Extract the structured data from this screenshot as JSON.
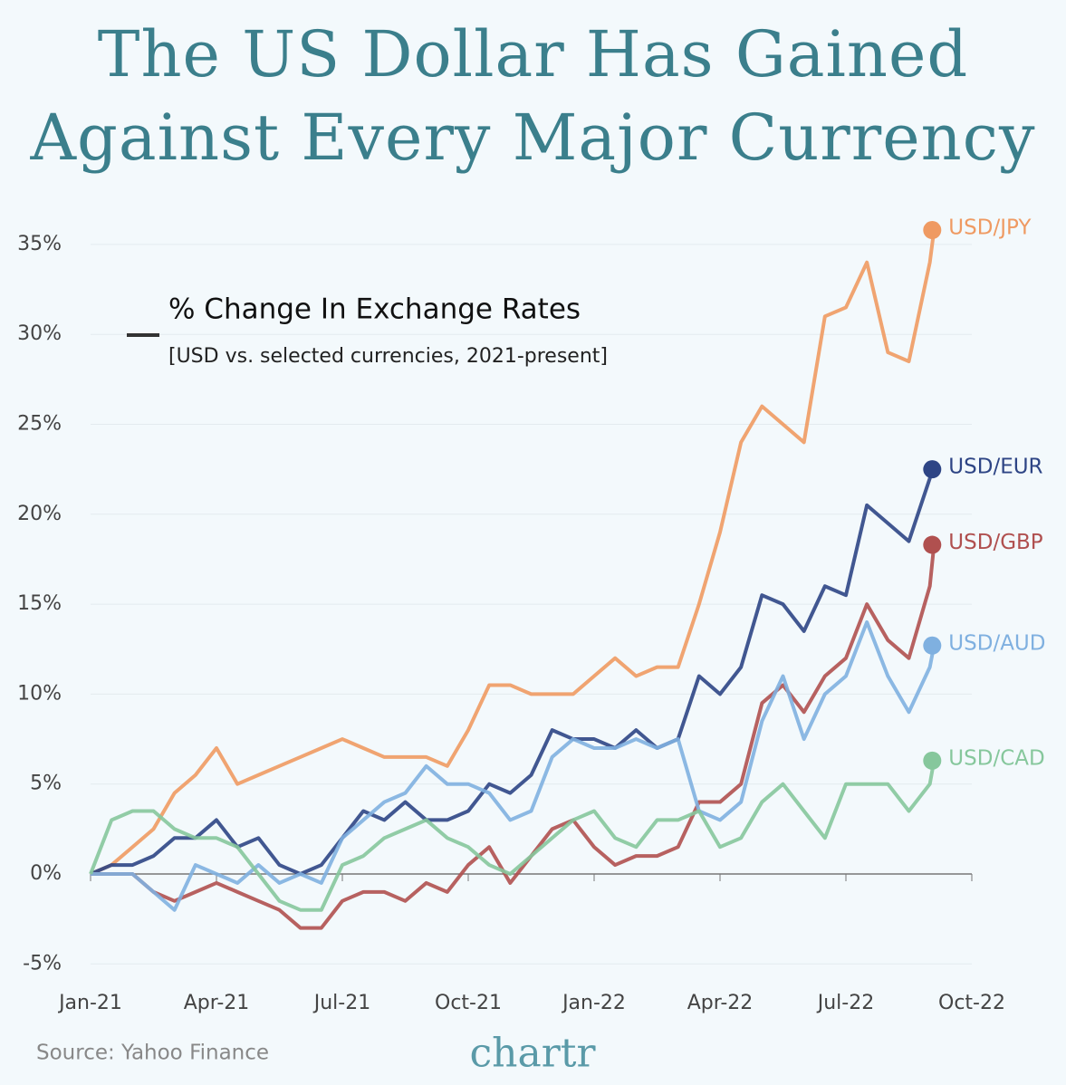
{
  "chart_data": {
    "type": "line",
    "title": "The US Dollar Has Gained Against Every Major Currency",
    "legend_title": "% Change In Exchange Rates",
    "subtitle": "[USD vs. selected currencies, 2021-present]",
    "source": "Source: Yahoo Finance",
    "logo": "chartr",
    "x": [
      0,
      0.5,
      1,
      1.5,
      2,
      2.5,
      3,
      3.5,
      4,
      4.5,
      5,
      5.5,
      6,
      6.5,
      7,
      7.5,
      8,
      8.5,
      9,
      9.5,
      10,
      10.5,
      11,
      11.5,
      12,
      12.5,
      13,
      13.5,
      14,
      14.5,
      15,
      15.5,
      16,
      16.5,
      17,
      17.5,
      18,
      18.5,
      19,
      19.5,
      20,
      20.1
    ],
    "xlim": [
      0,
      21
    ],
    "xticks": [
      {
        "value": 0,
        "label": "Jan-21"
      },
      {
        "value": 3,
        "label": "Apr-21"
      },
      {
        "value": 6,
        "label": "Jul-21"
      },
      {
        "value": 9,
        "label": "Oct-21"
      },
      {
        "value": 12,
        "label": "Jan-22"
      },
      {
        "value": 15,
        "label": "Apr-22"
      },
      {
        "value": 18,
        "label": "Jul-22"
      },
      {
        "value": 21,
        "label": "Oct-22"
      }
    ],
    "ylim": [
      -5.5,
      36.5
    ],
    "yticks": [
      {
        "value": -5,
        "label": "-5%"
      },
      {
        "value": 0,
        "label": "0%"
      },
      {
        "value": 5,
        "label": "5%"
      },
      {
        "value": 10,
        "label": "10%"
      },
      {
        "value": 15,
        "label": "15%"
      },
      {
        "value": 20,
        "label": "20%"
      },
      {
        "value": 25,
        "label": "25%"
      },
      {
        "value": 30,
        "label": "30%"
      },
      {
        "value": 35,
        "label": "35%"
      }
    ],
    "grid": true,
    "series": [
      {
        "name": "USD/JPY",
        "color": "#ef9a62",
        "values": [
          0,
          0.5,
          1.5,
          2.5,
          4.5,
          5.5,
          7,
          5,
          5.5,
          6,
          6.5,
          7,
          7.5,
          7,
          6.5,
          6.5,
          6.5,
          6,
          8,
          10.5,
          10.5,
          10,
          10,
          10,
          11,
          12,
          11,
          11.5,
          11.5,
          15,
          19,
          24,
          26,
          25,
          24,
          31,
          31.5,
          34,
          29,
          28.5,
          34,
          35.8
        ]
      },
      {
        "name": "USD/EUR",
        "color": "#2e4585",
        "values": [
          0,
          0.5,
          0.5,
          1,
          2,
          2,
          3,
          1.5,
          2,
          0.5,
          0,
          0.5,
          2,
          3.5,
          3,
          4,
          3,
          3,
          3.5,
          5,
          4.5,
          5.5,
          8,
          7.5,
          7.5,
          7,
          8,
          7,
          7.5,
          11,
          10,
          11.5,
          15.5,
          15,
          13.5,
          16,
          15.5,
          20.5,
          19.5,
          18.5,
          22,
          22.5
        ]
      },
      {
        "name": "USD/GBP",
        "color": "#b0504f",
        "values": [
          0,
          0,
          0,
          -1,
          -1.5,
          -1,
          -0.5,
          -1,
          -1.5,
          -2,
          -3,
          -3,
          -1.5,
          -1,
          -1,
          -1.5,
          -0.5,
          -1,
          0.5,
          1.5,
          -0.5,
          1,
          2.5,
          3,
          1.5,
          0.5,
          1,
          1,
          1.5,
          4,
          4,
          5,
          9.5,
          10.5,
          9,
          11,
          12,
          15,
          13,
          12,
          16,
          18.3
        ]
      },
      {
        "name": "USD/AUD",
        "color": "#7fb0e0",
        "values": [
          0,
          0,
          0,
          -1,
          -2,
          0.5,
          0,
          -0.5,
          0.5,
          -0.5,
          0,
          -0.5,
          2,
          3,
          4,
          4.5,
          6,
          5,
          5,
          4.5,
          3,
          3.5,
          6.5,
          7.5,
          7,
          7,
          7.5,
          7,
          7.5,
          3.5,
          3,
          4,
          8.5,
          11,
          7.5,
          10,
          11,
          14,
          11,
          9,
          11.5,
          12.7
        ]
      },
      {
        "name": "USD/CAD",
        "color": "#86c79c",
        "values": [
          0,
          3,
          3.5,
          3.5,
          2.5,
          2,
          2,
          1.5,
          0,
          -1.5,
          -2,
          -2,
          0.5,
          1,
          2,
          2.5,
          3,
          2,
          1.5,
          0.5,
          0,
          1,
          2,
          3,
          3.5,
          2,
          1.5,
          3,
          3,
          3.5,
          1.5,
          2,
          4,
          5,
          3.5,
          2,
          5,
          5,
          5,
          3.5,
          5,
          6.3
        ]
      }
    ]
  }
}
